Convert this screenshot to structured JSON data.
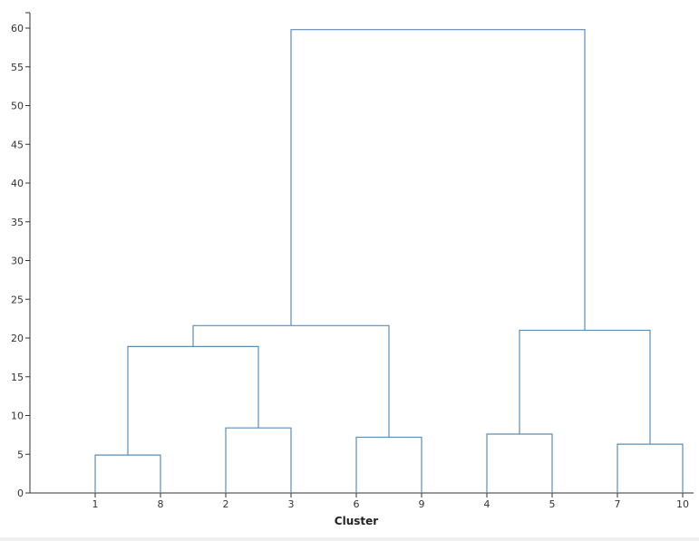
{
  "chart_data": {
    "type": "dendrogram",
    "xlabel": "Cluster",
    "ylabel": "",
    "ylim": [
      0,
      62
    ],
    "yticks": [
      0,
      5,
      10,
      15,
      20,
      25,
      30,
      35,
      40,
      45,
      50,
      55,
      60
    ],
    "leaves": [
      "1",
      "8",
      "2",
      "3",
      "6",
      "9",
      "4",
      "5",
      "7",
      "10"
    ],
    "link_color": "#5b8db8",
    "merges": [
      {
        "left": "1",
        "right": "8",
        "height": 4.9
      },
      {
        "left": "2",
        "right": "3",
        "height": 8.4
      },
      {
        "left": "6",
        "right": "9",
        "height": 7.2
      },
      {
        "left": "4",
        "right": "5",
        "height": 7.6
      },
      {
        "left": "7",
        "right": "10",
        "height": 6.3
      },
      {
        "left": "(1,8)",
        "right": "(2,3)",
        "height": 18.9
      },
      {
        "left": "((1,8),(2,3))",
        "right": "(6,9)",
        "height": 21.6
      },
      {
        "left": "(4,5)",
        "right": "(7,10)",
        "height": 21.0
      },
      {
        "left": "(((1,8),(2,3)),(6,9))",
        "right": "((4,5),(7,10))",
        "height": 59.8
      }
    ]
  }
}
